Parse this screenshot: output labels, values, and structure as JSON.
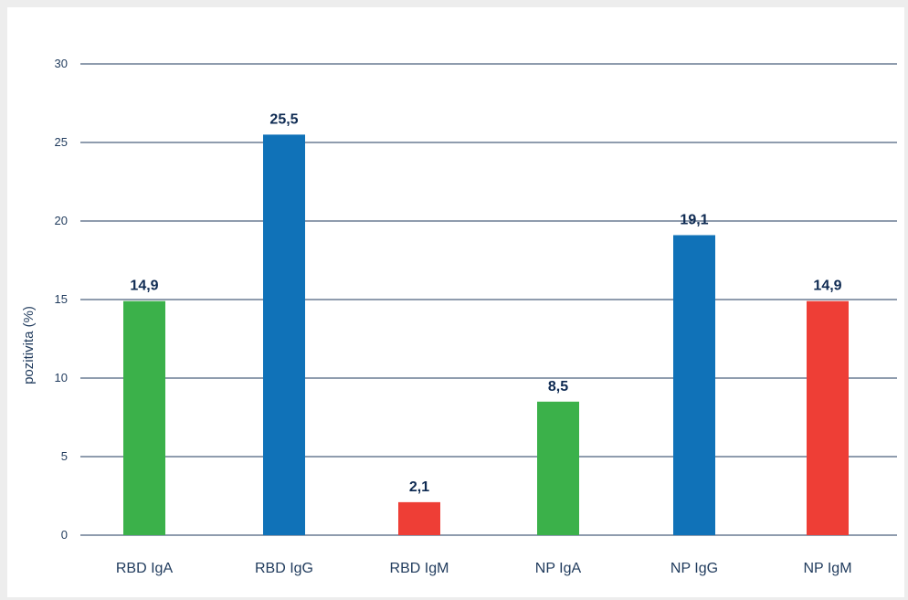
{
  "chart_data": {
    "type": "bar",
    "title": "",
    "xlabel": "",
    "ylabel": "pozitivita (%)",
    "ylim": [
      0,
      30
    ],
    "yticks": [
      0,
      5,
      10,
      15,
      20,
      25,
      30
    ],
    "grid": true,
    "categories": [
      "RBD IgA",
      "RBD IgG",
      "RBD IgM",
      "NP IgA",
      "NP IgG",
      "NP IgM"
    ],
    "values": [
      14.9,
      25.5,
      2.1,
      8.5,
      19.1,
      14.9
    ],
    "value_labels": [
      "14,9",
      "25,5",
      "2,1",
      "8,5",
      "19,1",
      "14,9"
    ],
    "bar_colors": [
      "#3bb14a",
      "#1072b8",
      "#ee3e36",
      "#3bb14a",
      "#1072b8",
      "#ee3e36"
    ],
    "grid_color": "#1f3a5c"
  }
}
